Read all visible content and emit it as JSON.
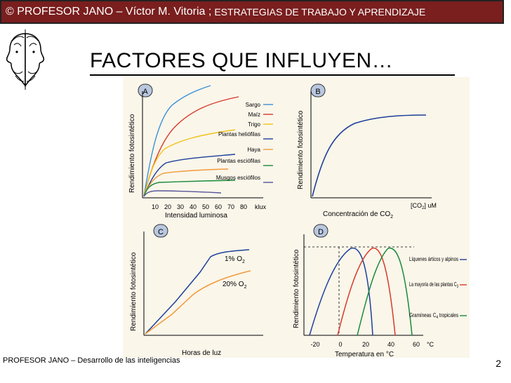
{
  "header": {
    "main": "© PROFESOR JANO – Víctor M. Vitoria ;",
    "sub": "ESTRATEGIAS DE TRABAJO Y APRENDIZAJE"
  },
  "slide": {
    "title": "FACTORES QUE INFLUYEN…"
  },
  "panels": {
    "a": {
      "letter": "A",
      "ylabel": "Rendimiento fotosintético",
      "xlabel": "Intensidad luminosa",
      "unit": "klux",
      "ticks": [
        "10",
        "20",
        "30",
        "40",
        "50",
        "60",
        "70",
        "80"
      ],
      "legend": [
        {
          "label": "Sargo",
          "color": "#3b8fd8"
        },
        {
          "label": "Maíz",
          "color": "#d83a2a"
        },
        {
          "label": "Trigo",
          "color": "#f2c21a"
        },
        {
          "label": "Plantas heliófilas",
          "color": "#1e3f9a"
        },
        {
          "label": "Haya",
          "color": "#f29a3a"
        },
        {
          "label": "Plantas esciófilas",
          "color": "#1a8a3a"
        },
        {
          "label": "Musgos esciófilos",
          "color": "#555599"
        }
      ]
    },
    "b": {
      "letter": "B",
      "ylabel": "Rendimiento fotosintético",
      "xlabel": "Concentración de CO",
      "xlabel_sub": "2",
      "unit_pre": "[CO",
      "unit_sub": "2",
      "unit_post": "]  uM"
    },
    "c": {
      "letter": "C",
      "ylabel": "Rendimiento fotosintético",
      "xlabel": "Horas de luz",
      "curve1_label": "1% O",
      "curve1_sub": "2",
      "curve2_label": "20% O",
      "curve2_sub": "2"
    },
    "d": {
      "letter": "D",
      "ylabel": "Rendimiento fotosintético",
      "xlabel": "Temperatura en °C",
      "unit": "°C",
      "ticks": [
        "-20",
        "0",
        "20",
        "40",
        "60"
      ],
      "legend1": "Líquenes árticos y alpinos",
      "legend2_pre": "La mayoría de las plantas C",
      "legend2_sub": "3",
      "legend3_pre": "Gramíneas",
      "legend3_sub": "C",
      "legend3_sub2": "4",
      "legend3_post": " tropicales"
    }
  },
  "footer": {
    "text": "PROFESOR JANO – Desarrollo de las inteligencias"
  },
  "page_number": "2",
  "colors": {
    "header_bg": "#7a1e1e",
    "figure_bg": "#faf6ea",
    "blue": "#1e3f9a",
    "orange": "#f29a3a",
    "red": "#d83a2a",
    "green": "#1a8a3a"
  }
}
